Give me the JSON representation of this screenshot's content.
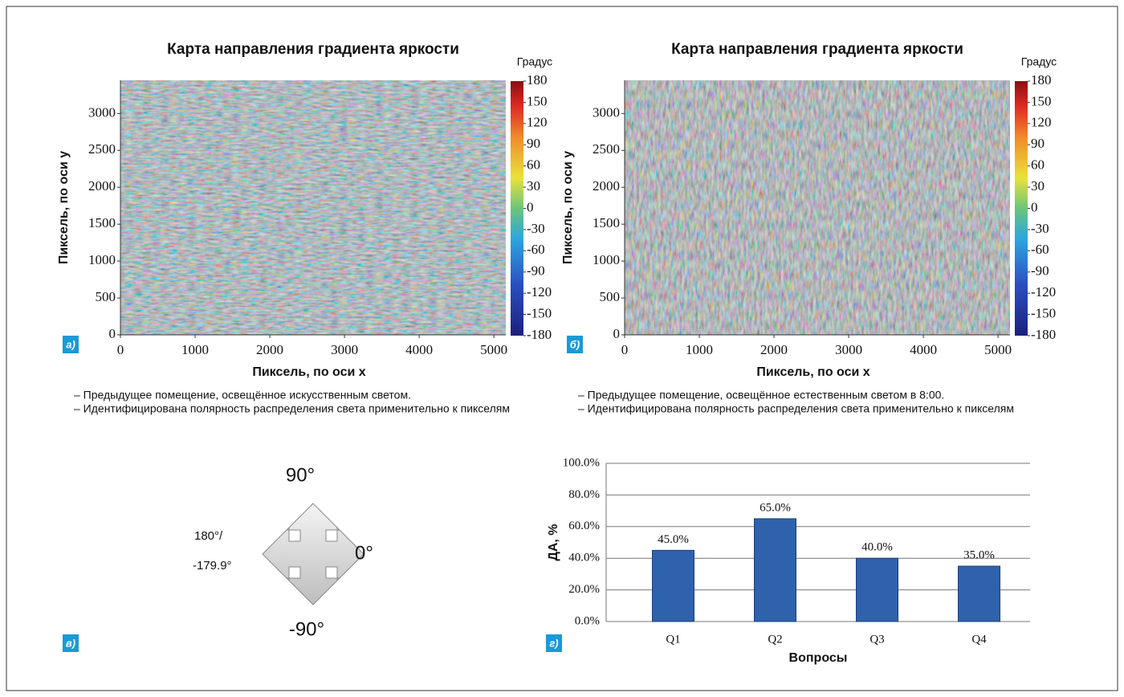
{
  "chart_data": [
    {
      "type": "heatmap",
      "title": "Карта направления градиента яркости",
      "xlabel": "Пиксель, по оси x",
      "ylabel": "Пиксель, по оси y",
      "xlim": [
        0,
        5160
      ],
      "xticks": [
        0,
        1000,
        2000,
        3000,
        4000,
        5000
      ],
      "ylim": [
        0,
        3450
      ],
      "yticks": [
        0,
        500,
        1000,
        1500,
        2000,
        2500,
        3000
      ],
      "colorbar_label": "Градус",
      "clim": [
        -180,
        180
      ],
      "colorbar_ticks": [
        180,
        150,
        120,
        90,
        60,
        30,
        0,
        -30,
        -60,
        -90,
        -120,
        -150,
        -180
      ],
      "panel_label": "а)",
      "caption": [
        "– Предыдущее помещение, освещённое искусственным светом.",
        "– Идентифицирована полярность распределения света применительно к пикселям"
      ]
    },
    {
      "type": "heatmap",
      "title": "Карта направления градиента яркости",
      "xlabel": "Пиксель, по оси x",
      "ylabel": "Пиксель, по оси y",
      "xlim": [
        0,
        5160
      ],
      "xticks": [
        0,
        1000,
        2000,
        3000,
        4000,
        5000
      ],
      "ylim": [
        0,
        3450
      ],
      "yticks": [
        0,
        500,
        1000,
        1500,
        2000,
        2500,
        3000
      ],
      "colorbar_label": "Градус",
      "clim": [
        -180,
        180
      ],
      "colorbar_ticks": [
        180,
        150,
        120,
        90,
        60,
        30,
        0,
        -30,
        -60,
        -90,
        -120,
        -150,
        -180
      ],
      "panel_label": "б)",
      "caption": [
        "– Предыдущее помещение, освещённое естественным светом в 8:00.",
        "– Идентифицирована полярность распределения света применительно к пикселям"
      ]
    },
    {
      "type": "bar",
      "xlabel": "Вопросы",
      "ylabel": "ДА, %",
      "categories": [
        "Q1",
        "Q2",
        "Q3",
        "Q4"
      ],
      "values": [
        45,
        65,
        40,
        35
      ],
      "value_labels": [
        "45.0%",
        "65.0%",
        "40.0%",
        "35.0%"
      ],
      "color": "#2e62ad",
      "ylim": [
        0,
        100
      ],
      "yticks": [
        {
          "value": 0,
          "label": "0.0%"
        },
        {
          "value": 20,
          "label": "20.0%"
        },
        {
          "value": 40,
          "label": "40.0%"
        },
        {
          "value": 60,
          "label": "60.0%"
        },
        {
          "value": 80,
          "label": "80.0%"
        },
        {
          "value": 100,
          "label": "100.0%"
        }
      ],
      "grid": true,
      "panel_label": "г)"
    }
  ],
  "diagram": {
    "up": "90°",
    "right": "0°",
    "down": "-90°",
    "left_1": "180°/",
    "left_2": "-179.9°",
    "panel_label": "в)"
  }
}
